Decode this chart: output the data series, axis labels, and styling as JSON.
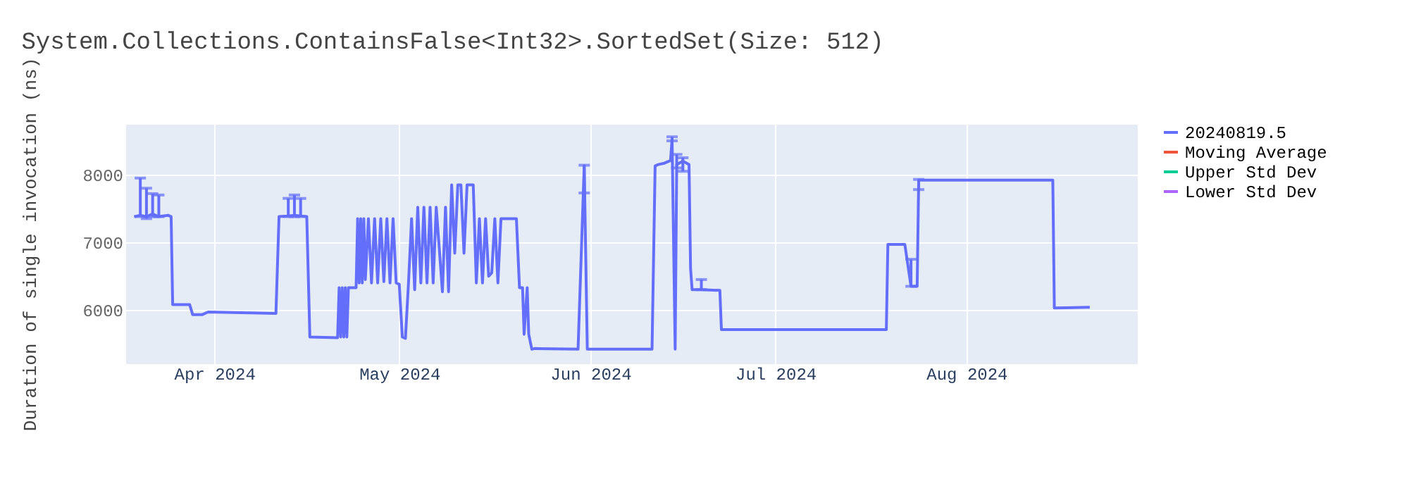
{
  "chart_data": {
    "type": "line",
    "title": "System.Collections.ContainsFalse<Int32>.SortedSet(Size: 512)",
    "ylabel": "Duration of single invocation (ns)",
    "xlim": [
      "2024-03-17T14:00",
      "2024-08-28T16:00"
    ],
    "ylim": [
      5210,
      8750
    ],
    "xticks": [
      {
        "value": "2024-04-01",
        "label": "Apr 2024"
      },
      {
        "value": "2024-05-01",
        "label": "May 2024"
      },
      {
        "value": "2024-06-01",
        "label": "Jun 2024"
      },
      {
        "value": "2024-07-01",
        "label": "Jul 2024"
      },
      {
        "value": "2024-08-01",
        "label": "Aug 2024"
      }
    ],
    "yticks": [
      6000,
      7000,
      8000
    ],
    "grid": true,
    "legend": "top right",
    "line_style": "solid",
    "marker": "none",
    "series": [
      {
        "name": "20240819.5",
        "color": "#636efa",
        "x": [
          "2024-03-19",
          "2024-03-20",
          "2024-03-21",
          "2024-03-22",
          "2024-03-23",
          "2024-03-24T12:00",
          "2024-03-25",
          "2024-03-25T06:00",
          "2024-03-28",
          "2024-03-28T12:00",
          "2024-03-30",
          "2024-03-31",
          "2024-04-11",
          "2024-04-11T12:00",
          "2024-04-13",
          "2024-04-14",
          "2024-04-15",
          "2024-04-16",
          "2024-04-16T12:00",
          "2024-04-21",
          "2024-04-21T06:00",
          "2024-04-21T12:00",
          "2024-04-21T18:00",
          "2024-04-22",
          "2024-04-22T06:00",
          "2024-04-22T12:00",
          "2024-04-22T18:00",
          "2024-04-24",
          "2024-04-24T06:00",
          "2024-04-24T12:00",
          "2024-04-24T18:00",
          "2024-04-25",
          "2024-04-25T06:00",
          "2024-04-25T12:00",
          "2024-04-26",
          "2024-04-26T12:00",
          "2024-04-27",
          "2024-04-27T12:00",
          "2024-04-28",
          "2024-04-28T12:00",
          "2024-04-29",
          "2024-04-29T12:00",
          "2024-04-30",
          "2024-04-30T12:00",
          "2024-05-01",
          "2024-05-01T12:00",
          "2024-05-02",
          "2024-05-02T12:00",
          "2024-05-03",
          "2024-05-03T12:00",
          "2024-05-04",
          "2024-05-04T12:00",
          "2024-05-05",
          "2024-05-05T12:00",
          "2024-05-06",
          "2024-05-06T12:00",
          "2024-05-07",
          "2024-05-08",
          "2024-05-08T12:00",
          "2024-05-09",
          "2024-05-09T12:00",
          "2024-05-10",
          "2024-05-10T12:00",
          "2024-05-11",
          "2024-05-11T12:00",
          "2024-05-12",
          "2024-05-13",
          "2024-05-13T12:00",
          "2024-05-14",
          "2024-05-14T12:00",
          "2024-05-15",
          "2024-05-15T12:00",
          "2024-05-16",
          "2024-05-16T12:00",
          "2024-05-17",
          "2024-05-17T12:00",
          "2024-05-18",
          "2024-05-19",
          "2024-05-20",
          "2024-05-20T12:00",
          "2024-05-21",
          "2024-05-21T06:00",
          "2024-05-21T18:00",
          "2024-05-22",
          "2024-05-22T12:00",
          "2024-05-23",
          "2024-05-30",
          "2024-05-31",
          "2024-05-31T12:00",
          "2024-06-11",
          "2024-06-11T12:00",
          "2024-06-12",
          "2024-06-13",
          "2024-06-14",
          "2024-06-14T06:00",
          "2024-06-14T18:00",
          "2024-06-15",
          "2024-06-16",
          "2024-06-17",
          "2024-06-17T06:00",
          "2024-06-17T12:00",
          "2024-06-19",
          "2024-06-22",
          "2024-06-22T06:00",
          "2024-07-19",
          "2024-07-19T06:00",
          "2024-07-22",
          "2024-07-23",
          "2024-07-24",
          "2024-07-24T06:00",
          "2024-08-15",
          "2024-08-15T06:00",
          "2024-08-21"
        ],
        "values": [
          7380,
          7400,
          7380,
          7420,
          7380,
          7400,
          7380,
          6080,
          6080,
          5930,
          5930,
          5970,
          5950,
          7380,
          7390,
          7400,
          7390,
          7380,
          5600,
          5590,
          6330,
          5600,
          6330,
          5600,
          6330,
          5600,
          6330,
          6330,
          7350,
          6400,
          7350,
          6400,
          7350,
          6450,
          7350,
          6400,
          7350,
          6400,
          7350,
          6420,
          7350,
          6400,
          7350,
          6400,
          6380,
          5600,
          5580,
          6400,
          7350,
          6300,
          7520,
          6400,
          7520,
          6400,
          7520,
          6400,
          7520,
          6270,
          7520,
          6270,
          7850,
          6840,
          7850,
          7850,
          6840,
          7850,
          7850,
          6400,
          7350,
          6400,
          7350,
          6500,
          6550,
          7350,
          6400,
          7350,
          7350,
          7350,
          7350,
          6330,
          6330,
          5640,
          6330,
          5640,
          5420,
          5430,
          5420,
          8130,
          5420,
          5420,
          8130,
          8150,
          8170,
          8210,
          8530,
          5420,
          8150,
          8200,
          8150,
          6610,
          6300,
          6300,
          6290,
          5710,
          5710,
          6970,
          6970,
          6350,
          6350,
          7920,
          7920,
          6030,
          6040
        ],
        "errors": [
          null,
          [
            7380,
            7950
          ],
          [
            7350,
            7800
          ],
          [
            7380,
            7720
          ],
          [
            7380,
            7700
          ],
          null,
          null,
          null,
          null,
          null,
          null,
          null,
          null,
          null,
          [
            7380,
            7650
          ],
          [
            7380,
            7700
          ],
          [
            7380,
            7650
          ],
          null,
          null,
          null,
          null,
          null,
          null,
          null,
          null,
          null,
          null,
          null,
          null,
          null,
          null,
          null,
          null,
          null,
          null,
          null,
          null,
          null,
          null,
          null,
          null,
          null,
          null,
          null,
          null,
          null,
          null,
          null,
          null,
          null,
          null,
          null,
          null,
          null,
          null,
          null,
          null,
          null,
          null,
          null,
          null,
          null,
          null,
          null,
          null,
          null,
          null,
          null,
          null,
          null,
          null,
          null,
          null,
          null,
          null,
          null,
          null,
          null,
          null,
          null,
          null,
          null,
          null,
          null,
          null,
          null,
          null,
          [
            7730,
            8140
          ],
          null,
          null,
          null,
          null,
          null,
          null,
          [
            8500,
            8560
          ],
          null,
          [
            8100,
            8300
          ],
          [
            8050,
            8250
          ],
          null,
          null,
          null,
          [
            6300,
            6450
          ],
          null,
          null,
          null,
          null,
          null,
          [
            6350,
            6750
          ],
          null,
          [
            7780,
            7930
          ],
          null,
          null,
          null
        ]
      },
      {
        "name": "Moving Average",
        "color": "#ef553b"
      },
      {
        "name": "Upper Std Dev",
        "color": "#00cc96"
      },
      {
        "name": "Lower Std Dev",
        "color": "#ab63fa"
      }
    ]
  }
}
